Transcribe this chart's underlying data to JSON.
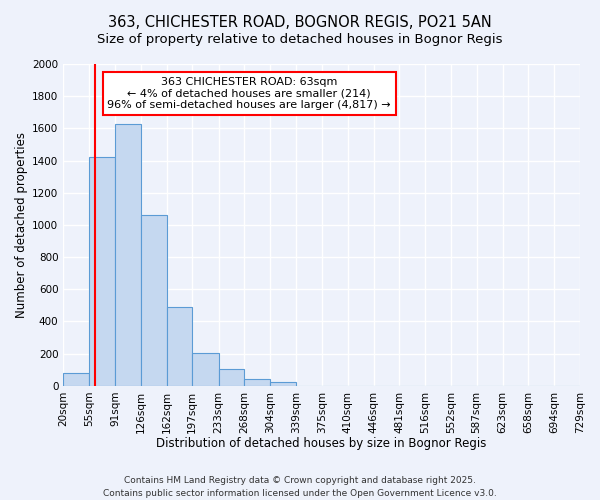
{
  "title1": "363, CHICHESTER ROAD, BOGNOR REGIS, PO21 5AN",
  "title2": "Size of property relative to detached houses in Bognor Regis",
  "xlabel": "Distribution of detached houses by size in Bognor Regis",
  "ylabel": "Number of detached properties",
  "bin_labels": [
    "20sqm",
    "55sqm",
    "91sqm",
    "126sqm",
    "162sqm",
    "197sqm",
    "233sqm",
    "268sqm",
    "304sqm",
    "339sqm",
    "375sqm",
    "410sqm",
    "446sqm",
    "481sqm",
    "516sqm",
    "552sqm",
    "587sqm",
    "623sqm",
    "658sqm",
    "694sqm",
    "729sqm"
  ],
  "bin_edges": [
    20,
    55,
    91,
    126,
    162,
    197,
    233,
    268,
    304,
    339,
    375,
    410,
    446,
    481,
    516,
    552,
    587,
    623,
    658,
    694,
    729
  ],
  "bar_heights": [
    80,
    1425,
    1625,
    1060,
    490,
    205,
    105,
    40,
    25,
    0,
    0,
    0,
    0,
    0,
    0,
    0,
    0,
    0,
    0,
    0
  ],
  "bar_color": "#c5d8f0",
  "bar_edgecolor": "#5b9bd5",
  "red_line_x": 63,
  "ylim": [
    0,
    2000
  ],
  "yticks": [
    0,
    200,
    400,
    600,
    800,
    1000,
    1200,
    1400,
    1600,
    1800,
    2000
  ],
  "annotation_title": "363 CHICHESTER ROAD: 63sqm",
  "annotation_line1": "← 4% of detached houses are smaller (214)",
  "annotation_line2": "96% of semi-detached houses are larger (4,817) →",
  "footer1": "Contains HM Land Registry data © Crown copyright and database right 2025.",
  "footer2": "Contains public sector information licensed under the Open Government Licence v3.0.",
  "background_color": "#eef2fb",
  "plot_bg_color": "#eef2fb",
  "grid_color": "#ffffff",
  "title1_fontsize": 10.5,
  "title2_fontsize": 9.5,
  "xlabel_fontsize": 8.5,
  "ylabel_fontsize": 8.5,
  "tick_fontsize": 7.5,
  "annot_fontsize": 8,
  "footer_fontsize": 6.5
}
